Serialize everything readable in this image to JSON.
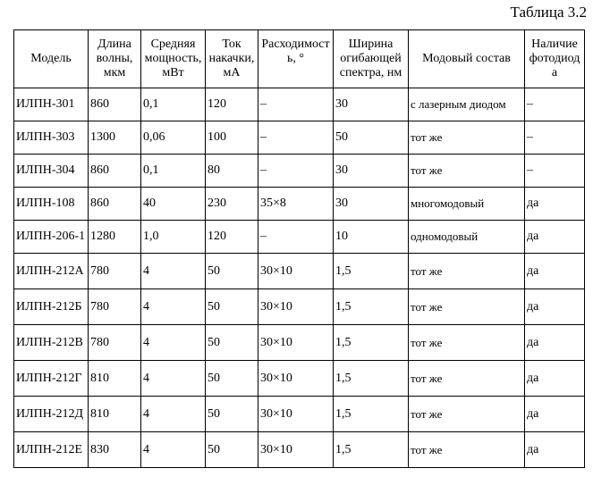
{
  "caption": "Таблица 3.2",
  "headers": {
    "model": "Модель",
    "wavelength": "Длина волны, мкм",
    "power": "Средняя мощность, мВт",
    "current": "Ток накачки, мА",
    "divergence": "Расходимость, °",
    "spectrum_width": "Ширина огибающей спектра, нм",
    "mode": "Модовый состав",
    "photodiode": "Наличие фотодиода"
  },
  "rows": [
    {
      "model": "ИЛПН-301",
      "wavelength": "860",
      "power": "0,1",
      "current": "120",
      "divergence": "–",
      "spectrum_width": "30",
      "mode": "с лазерным диодом",
      "photodiode": "–"
    },
    {
      "model": "ИЛПН-303",
      "wavelength": "1300",
      "power": "0,06",
      "current": "100",
      "divergence": "–",
      "spectrum_width": "50",
      "mode": "тот же",
      "photodiode": "–"
    },
    {
      "model": "ИЛПН-304",
      "wavelength": "860",
      "power": "0,1",
      "current": "80",
      "divergence": "–",
      "spectrum_width": "30",
      "mode": "тот же",
      "photodiode": "–"
    },
    {
      "model": "ИЛПН-108",
      "wavelength": "860",
      "power": "40",
      "current": "230",
      "divergence": "35×8",
      "spectrum_width": "30",
      "mode": "многомодовый",
      "photodiode": "да"
    },
    {
      "model": "ИЛПН-206-1",
      "wavelength": "1280",
      "power": "1,0",
      "current": "120",
      "divergence": "–",
      "spectrum_width": "10",
      "mode": "одномодовый",
      "photodiode": "да"
    },
    {
      "model": "ИЛПН-212А",
      "wavelength": "780",
      "power": "4",
      "current": "50",
      "divergence": "30×10",
      "spectrum_width": "1,5",
      "mode": "тот же",
      "photodiode": "да"
    },
    {
      "model": "ИЛПН-212Б",
      "wavelength": "780",
      "power": "4",
      "current": "50",
      "divergence": "30×10",
      "spectrum_width": "1,5",
      "mode": "тот же",
      "photodiode": "да"
    },
    {
      "model": "ИЛПН-212В",
      "wavelength": "780",
      "power": "4",
      "current": "50",
      "divergence": "30×10",
      "spectrum_width": "1,5",
      "mode": "тот же",
      "photodiode": "да"
    },
    {
      "model": "ИЛПН-212Г",
      "wavelength": "810",
      "power": "4",
      "current": "50",
      "divergence": "30×10",
      "spectrum_width": "1,5",
      "mode": "тот же",
      "photodiode": "да"
    },
    {
      "model": "ИЛПН-212Д",
      "wavelength": "810",
      "power": "4",
      "current": "50",
      "divergence": "30×10",
      "spectrum_width": "1,5",
      "mode": "тот же",
      "photodiode": "да"
    },
    {
      "model": "ИЛПН-212Е",
      "wavelength": "830",
      "power": "4",
      "current": "50",
      "divergence": "30×10",
      "spectrum_width": "1,5",
      "mode": "тот же",
      "photodiode": "да"
    }
  ]
}
